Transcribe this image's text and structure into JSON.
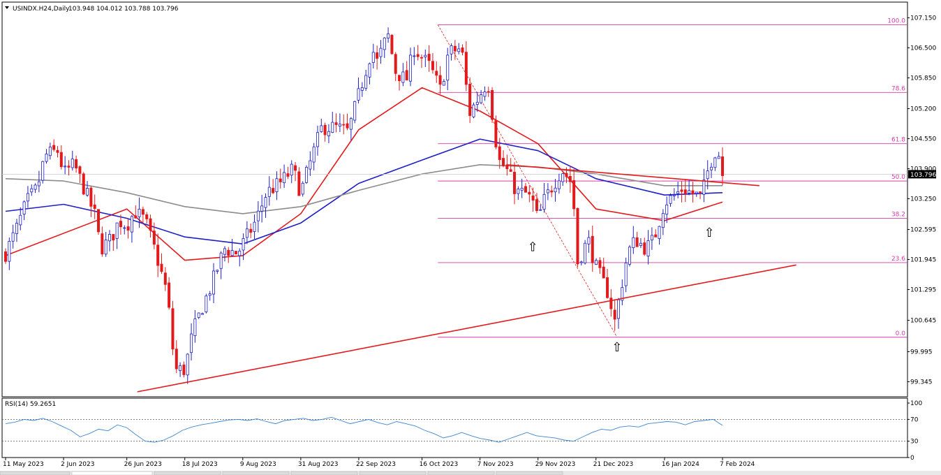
{
  "header": {
    "symbol_text": "USINDX.H24,Daily",
    "ohlc_text": "103.948 104.012 103.788 103.796"
  },
  "chart_data": [
    {
      "type": "candlestick",
      "title": "USINDX.H24,Daily",
      "price_axis": {
        "ticks": [
          "107.150",
          "106.500",
          "105.850",
          "105.200",
          "104.550",
          "103.900",
          "103.250",
          "102.595",
          "101.945",
          "101.295",
          "100.645",
          "99.995",
          "99.345"
        ],
        "range": [
          99.13,
          107.36
        ]
      },
      "time_axis": {
        "ticks": [
          "11 May 2023",
          "2 Jun 2023",
          "26 Jun 2023",
          "18 Jul 2023",
          "9 Aug 2023",
          "31 Aug 2023",
          "22 Sep 2023",
          "16 Oct 2023",
          "7 Nov 2023",
          "29 Nov 2023",
          "21 Dec 2023",
          "16 Jan 2024",
          "7 Feb 2024"
        ]
      },
      "current_price": "103.796",
      "price_path": [
        [
          "11 May 2023",
          102.1
        ],
        [
          "15 May 2023",
          102.6
        ],
        [
          "19 May 2023",
          103.2
        ],
        [
          "23 May 2023",
          103.5
        ],
        [
          "26 May 2023",
          104.2
        ],
        [
          "31 May 2023",
          104.3
        ],
        [
          "2 Jun 2023",
          103.8
        ],
        [
          "6 Jun 2023",
          104.0
        ],
        [
          "9 Jun 2023",
          103.6
        ],
        [
          "14 Jun 2023",
          102.9
        ],
        [
          "16 Jun 2023",
          102.2
        ],
        [
          "20 Jun 2023",
          102.4
        ],
        [
          "23 Jun 2023",
          102.8
        ],
        [
          "26 Jun 2023",
          102.7
        ],
        [
          "29 Jun 2023",
          103.0
        ],
        [
          "3 Jul 2023",
          102.8
        ],
        [
          "7 Jul 2023",
          102.1
        ],
        [
          "11 Jul 2023",
          101.3
        ],
        [
          "13 Jul 2023",
          100.4
        ],
        [
          "14 Jul 2023",
          99.6
        ],
        [
          "18 Jul 2023",
          99.6
        ],
        [
          "21 Jul 2023",
          100.4
        ],
        [
          "25 Jul 2023",
          101.0
        ],
        [
          "28 Jul 2023",
          101.4
        ],
        [
          "2 Aug 2023",
          102.2
        ],
        [
          "7 Aug 2023",
          102.1
        ],
        [
          "9 Aug 2023",
          102.3
        ],
        [
          "14 Aug 2023",
          102.8
        ],
        [
          "18 Aug 2023",
          103.4
        ],
        [
          "23 Aug 2023",
          103.6
        ],
        [
          "28 Aug 2023",
          103.9
        ],
        [
          "31 Aug 2023",
          103.4
        ],
        [
          "5 Sep 2023",
          104.3
        ],
        [
          "8 Sep 2023",
          104.8
        ],
        [
          "13 Sep 2023",
          104.8
        ],
        [
          "18 Sep 2023",
          104.7
        ],
        [
          "21 Sep 2023",
          105.3
        ],
        [
          "25 Sep 2023",
          106.1
        ],
        [
          "27 Sep 2023",
          106.5
        ],
        [
          "29 Sep 2023",
          106.2
        ],
        [
          "3 Oct 2023",
          106.8
        ],
        [
          "6 Oct 2023",
          106.0
        ],
        [
          "10 Oct 2023",
          105.8
        ],
        [
          "13 Oct 2023",
          106.5
        ],
        [
          "16 Oct 2023",
          106.3
        ],
        [
          "19 Oct 2023",
          106.1
        ],
        [
          "23 Oct 2023",
          105.6
        ],
        [
          "26 Oct 2023",
          106.4
        ],
        [
          "31 Oct 2023",
          106.5
        ],
        [
          "3 Nov 2023",
          105.1
        ],
        [
          "7 Nov 2023",
          105.5
        ],
        [
          "10 Nov 2023",
          105.8
        ],
        [
          "14 Nov 2023",
          104.1
        ],
        [
          "17 Nov 2023",
          103.9
        ],
        [
          "21 Nov 2023",
          103.4
        ],
        [
          "24 Nov 2023",
          103.4
        ],
        [
          "27 Nov 2023",
          103.2
        ],
        [
          "29 Nov 2023",
          102.8
        ],
        [
          "1 Dec 2023",
          103.2
        ],
        [
          "5 Dec 2023",
          103.6
        ],
        [
          "8 Dec 2023",
          103.9
        ],
        [
          "12 Dec 2023",
          103.6
        ],
        [
          "14 Dec 2023",
          101.9
        ],
        [
          "18 Dec 2023",
          102.4
        ],
        [
          "21 Dec 2023",
          101.8
        ],
        [
          "26 Dec 2023",
          101.2
        ],
        [
          "28 Dec 2023",
          100.6
        ],
        [
          "2 Jan 2024",
          102.1
        ],
        [
          "5 Jan 2024",
          102.4
        ],
        [
          "9 Jan 2024",
          102.2
        ],
        [
          "12 Jan 2024",
          102.4
        ],
        [
          "16 Jan 2024",
          103.2
        ],
        [
          "19 Jan 2024",
          103.3
        ],
        [
          "23 Jan 2024",
          103.5
        ],
        [
          "26 Jan 2024",
          103.4
        ],
        [
          "30 Jan 2024",
          103.3
        ],
        [
          "2 Feb 2024",
          104.0
        ],
        [
          "5 Feb 2024",
          104.4
        ],
        [
          "7 Feb 2024",
          103.8
        ]
      ],
      "moving_averages": [
        {
          "color": "#e31a1c",
          "points": [
            [
              "11 May 2023",
              102.05
            ],
            [
              "26 Jun 2023",
              103.05
            ],
            [
              "18 Jul 2023",
              101.95
            ],
            [
              "9 Aug 2023",
              102.05
            ],
            [
              "31 Aug 2023",
              102.95
            ],
            [
              "22 Sep 2023",
              104.75
            ],
            [
              "16 Oct 2023",
              105.65
            ],
            [
              "7 Nov 2023",
              105.15
            ],
            [
              "29 Nov 2023",
              104.45
            ],
            [
              "21 Dec 2023",
              103.05
            ],
            [
              "16 Jan 2024",
              102.8
            ],
            [
              "7 Feb 2024",
              103.2
            ]
          ]
        },
        {
          "color": "#1f1fc8",
          "points": [
            [
              "11 May 2023",
              103.0
            ],
            [
              "2 Jun 2023",
              103.15
            ],
            [
              "26 Jun 2023",
              102.85
            ],
            [
              "18 Jul 2023",
              102.45
            ],
            [
              "9 Aug 2023",
              102.3
            ],
            [
              "31 Aug 2023",
              102.75
            ],
            [
              "22 Sep 2023",
              103.6
            ],
            [
              "16 Oct 2023",
              104.1
            ],
            [
              "7 Nov 2023",
              104.55
            ],
            [
              "29 Nov 2023",
              104.3
            ],
            [
              "21 Dec 2023",
              103.7
            ],
            [
              "16 Jan 2024",
              103.35
            ],
            [
              "7 Feb 2024",
              103.4
            ]
          ]
        },
        {
          "color": "#8c8c8c",
          "points": [
            [
              "11 May 2023",
              103.7
            ],
            [
              "2 Jun 2023",
              103.65
            ],
            [
              "26 Jun 2023",
              103.4
            ],
            [
              "18 Jul 2023",
              103.1
            ],
            [
              "9 Aug 2023",
              102.95
            ],
            [
              "31 Aug 2023",
              103.1
            ],
            [
              "22 Sep 2023",
              103.45
            ],
            [
              "16 Oct 2023",
              103.8
            ],
            [
              "7 Nov 2023",
              104.0
            ],
            [
              "29 Nov 2023",
              103.95
            ],
            [
              "21 Dec 2023",
              103.8
            ],
            [
              "16 Jan 2024",
              103.55
            ],
            [
              "7 Feb 2024",
              103.55
            ]
          ]
        }
      ],
      "fibonacci": {
        "from": [
          "22 Oct 2023",
          107.0
        ],
        "to": [
          "29 Dec 2023",
          100.3
        ],
        "levels": [
          {
            "label": "100.0",
            "value": 107.0
          },
          {
            "label": "78.6",
            "value": 105.55
          },
          {
            "label": "61.8",
            "value": 104.45
          },
          {
            "label": "50.0",
            "value": 103.65
          },
          {
            "label": "38.2",
            "value": 102.85
          },
          {
            "label": "23.6",
            "value": 101.9
          },
          {
            "label": "0.0",
            "value": 100.3
          }
        ]
      },
      "trendlines": [
        {
          "from": [
            "30 Jun 2023",
            99.13
          ],
          "to": [
            "6 Mar 2024",
            101.85
          ]
        },
        {
          "from": [
            "17 Nov 2023",
            104.0
          ],
          "to": [
            "21 Feb 2024",
            103.55
          ]
        }
      ],
      "annotations": [
        {
          "symbol": "⇧",
          "at": [
            "27 Nov 2023",
            102.15
          ]
        },
        {
          "symbol": "⇧",
          "at": [
            "29 Dec 2023",
            100.0
          ]
        },
        {
          "symbol": "⇧",
          "at": [
            "2 Feb 2024",
            102.45
          ]
        }
      ]
    },
    {
      "type": "line",
      "title": "RSI(14) 59.2651",
      "ylim": [
        0,
        100
      ],
      "ticks": [
        "100",
        "70",
        "30",
        "0"
      ],
      "levels": [
        70,
        30
      ],
      "series": [
        {
          "color": "#3a86d4",
          "values": [
            62,
            65,
            70,
            68,
            72,
            66,
            58,
            50,
            38,
            44,
            52,
            49,
            60,
            55,
            42,
            30,
            28,
            32,
            40,
            50,
            56,
            60,
            63,
            66,
            69,
            70,
            68,
            71,
            66,
            62,
            68,
            70,
            72,
            68,
            70,
            74,
            68,
            62,
            66,
            70,
            64,
            60,
            66,
            62,
            58,
            50,
            44,
            36,
            40,
            46,
            40,
            35,
            32,
            28,
            34,
            40,
            46,
            40,
            38,
            36,
            32,
            30,
            38,
            46,
            52,
            50,
            56,
            58,
            56,
            62,
            64,
            66,
            65,
            60,
            66,
            68,
            70,
            59
          ]
        }
      ]
    }
  ]
}
